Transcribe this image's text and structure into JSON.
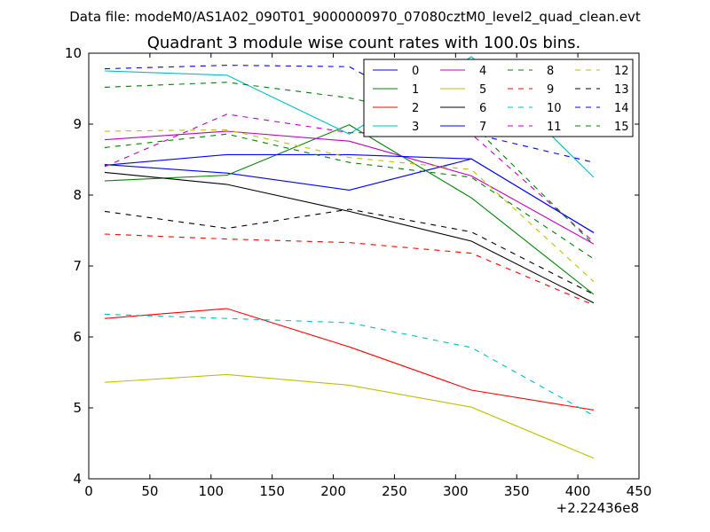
{
  "header": {
    "data_file": "Data file: modeM0/AS1A02_090T01_9000000970_07080cztM0_level2_quad_clean.evt"
  },
  "chart_data": {
    "type": "line",
    "title": "Quadrant 3 module wise count rates with 100.0s bins.",
    "xlabel": "",
    "ylabel": "",
    "x_offset_label": "+2.22436e8",
    "xlim": [
      0,
      450
    ],
    "ylim": [
      4,
      10
    ],
    "xticks": [
      0,
      50,
      100,
      150,
      200,
      250,
      300,
      350,
      400,
      450
    ],
    "yticks": [
      4,
      5,
      6,
      7,
      8,
      9,
      10
    ],
    "x": [
      13,
      113,
      213,
      313,
      413
    ],
    "legend_position": "top-right",
    "series": [
      {
        "name": "0",
        "color": "#0000ff",
        "style": "solid",
        "values": [
          8.43,
          8.31,
          8.07,
          8.51,
          7.47
        ]
      },
      {
        "name": "1",
        "color": "#008000",
        "style": "solid",
        "values": [
          8.2,
          8.28,
          8.99,
          7.96,
          6.6
        ]
      },
      {
        "name": "2",
        "color": "#ff0000",
        "style": "solid",
        "values": [
          6.26,
          6.4,
          5.86,
          5.25,
          4.97
        ]
      },
      {
        "name": "3",
        "color": "#00bfbf",
        "style": "solid",
        "values": [
          9.75,
          9.69,
          8.86,
          9.95,
          8.25
        ]
      },
      {
        "name": "4",
        "color": "#bf00bf",
        "style": "solid",
        "values": [
          8.78,
          8.9,
          8.76,
          8.27,
          7.31
        ]
      },
      {
        "name": "5",
        "color": "#bfbf00",
        "style": "solid",
        "values": [
          5.36,
          5.47,
          5.32,
          5.01,
          4.29
        ]
      },
      {
        "name": "6",
        "color": "#000000",
        "style": "solid",
        "values": [
          8.32,
          8.15,
          7.77,
          7.35,
          6.48
        ]
      },
      {
        "name": "7",
        "color": "#0000ff",
        "style": "solid",
        "values": [
          8.42,
          8.57,
          8.57,
          8.51,
          7.47
        ]
      },
      {
        "name": "8",
        "color": "#008000",
        "style": "dashed",
        "values": [
          8.67,
          8.86,
          8.46,
          8.25,
          7.1
        ]
      },
      {
        "name": "9",
        "color": "#ff0000",
        "style": "dashed",
        "values": [
          7.45,
          7.38,
          7.33,
          7.18,
          6.45
        ]
      },
      {
        "name": "10",
        "color": "#00bfbf",
        "style": "dashed",
        "values": [
          6.32,
          6.26,
          6.2,
          5.85,
          4.89
        ]
      },
      {
        "name": "11",
        "color": "#bf00bf",
        "style": "dashed",
        "values": [
          8.4,
          9.14,
          8.88,
          8.86,
          7.34
        ]
      },
      {
        "name": "12",
        "color": "#bfbf00",
        "style": "dashed",
        "values": [
          8.9,
          8.92,
          8.53,
          8.36,
          6.78
        ]
      },
      {
        "name": "13",
        "color": "#000000",
        "style": "dashed",
        "values": [
          7.77,
          7.53,
          7.8,
          7.48,
          6.6
        ]
      },
      {
        "name": "14",
        "color": "#0000ff",
        "style": "dashed",
        "values": [
          9.78,
          9.83,
          9.81,
          8.87,
          8.46
        ]
      },
      {
        "name": "15",
        "color": "#008000",
        "style": "dashed",
        "values": [
          9.52,
          9.59,
          9.37,
          9.0,
          7.3
        ]
      }
    ]
  }
}
